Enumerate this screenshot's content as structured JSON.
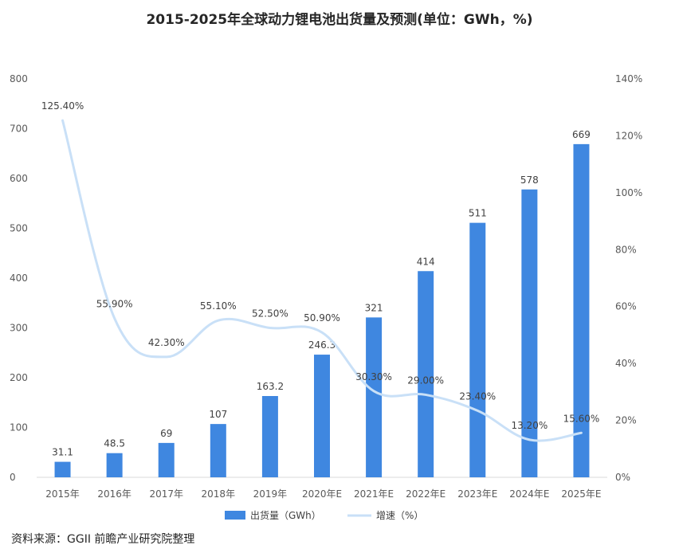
{
  "chart_data": {
    "type": "bar",
    "title": "2015-2025年全球动力锂电池出货量及预测(单位：GWh，%)",
    "categories": [
      "2015年",
      "2016年",
      "2017年",
      "2018年",
      "2019年",
      "2020年E",
      "2021年E",
      "2022年E",
      "2023年E",
      "2024年E",
      "2025年E"
    ],
    "series": [
      {
        "name": "出货量（GWh）",
        "type": "bar",
        "axis": "left",
        "values": [
          31.1,
          48.5,
          69,
          107,
          163.2,
          246.3,
          321,
          414,
          511,
          578,
          669
        ],
        "labels": [
          "31.1",
          "48.5",
          "69",
          "107",
          "163.2",
          "246.3",
          "321",
          "414",
          "511",
          "578",
          "669"
        ],
        "color": "#3F87E0"
      },
      {
        "name": "增速（%）",
        "type": "line",
        "axis": "right",
        "values": [
          125.4,
          55.9,
          42.3,
          55.1,
          52.5,
          50.9,
          30.3,
          29.0,
          23.4,
          13.2,
          15.6
        ],
        "labels": [
          "125.40%",
          "55.90%",
          "42.30%",
          "55.10%",
          "52.50%",
          "50.90%",
          "30.30%",
          "29.00%",
          "23.40%",
          "13.20%",
          "15.60%"
        ],
        "color": "#C9E0F7"
      }
    ],
    "y_left": {
      "range": [
        0,
        800
      ],
      "ticks": [
        "0",
        "100",
        "200",
        "300",
        "400",
        "500",
        "600",
        "700",
        "800"
      ]
    },
    "y_right": {
      "range": [
        0,
        140
      ],
      "ticks": [
        "0%",
        "20%",
        "40%",
        "60%",
        "80%",
        "100%",
        "120%",
        "140%"
      ]
    },
    "grid": false,
    "legend": "bottom",
    "source": "资料来源：GGII 前瞻产业研究院整理"
  }
}
